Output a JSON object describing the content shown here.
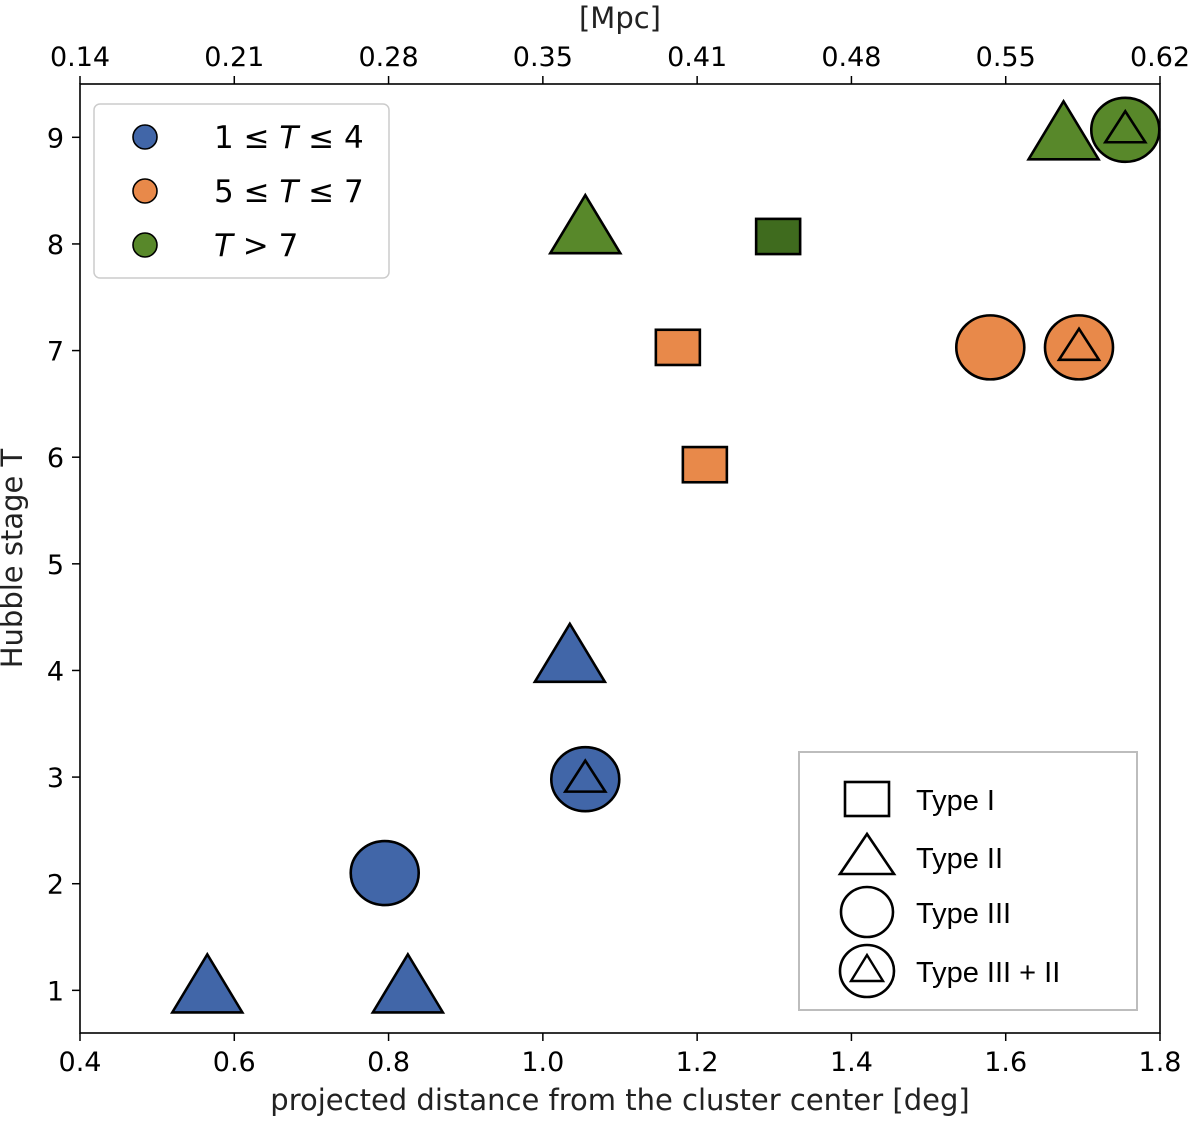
{
  "chart_data": {
    "type": "scatter",
    "xlabel": "projected distance from the cluster center [deg]",
    "ylabel": "Hubble stage T",
    "top_xlabel": "[Mpc]",
    "xlim": [
      0.4,
      1.8
    ],
    "ylim": [
      0.6,
      9.5
    ],
    "x_ticks": [
      0.4,
      0.6,
      0.8,
      1.0,
      1.2,
      1.4,
      1.6,
      1.8
    ],
    "x_tick_labels": [
      "0.4",
      "0.6",
      "0.8",
      "1.0",
      "1.2",
      "1.4",
      "1.6",
      "1.8"
    ],
    "y_ticks": [
      1,
      2,
      3,
      4,
      5,
      6,
      7,
      8,
      9
    ],
    "y_tick_labels": [
      "1",
      "2",
      "3",
      "4",
      "5",
      "6",
      "7",
      "8",
      "9"
    ],
    "top_x_ticks": [
      0.4,
      0.6,
      0.8,
      1.0,
      1.2,
      1.4,
      1.6,
      1.8
    ],
    "top_x_tick_labels": [
      "0.14",
      "0.21",
      "0.28",
      "0.35",
      "0.41",
      "0.48",
      "0.55",
      "0.62"
    ],
    "color_legend": {
      "location": "upper left",
      "entries": [
        {
          "group": "blue",
          "label_prefix": "1 ≤ ",
          "label_var": "T",
          "label_suffix": " ≤ 4",
          "color": "#4166a8"
        },
        {
          "group": "orange",
          "label_prefix": "5 ≤ ",
          "label_var": "T",
          "label_suffix": " ≤ 7",
          "color": "#e8894a"
        },
        {
          "group": "green",
          "label_prefix": "",
          "label_var": "T",
          "label_suffix": " > 7",
          "color": "#58882a"
        }
      ]
    },
    "type_legend": {
      "location": "lower right",
      "entries": [
        {
          "marker": "square",
          "label": "Type I"
        },
        {
          "marker": "triangle",
          "label": "Type II"
        },
        {
          "marker": "circle",
          "label": "Type III"
        },
        {
          "marker": "circle-triangle",
          "label": "Type III + II"
        }
      ]
    },
    "points": [
      {
        "x": 0.565,
        "y": 1.0,
        "marker": "triangle",
        "color": "#4166a8"
      },
      {
        "x": 0.825,
        "y": 1.0,
        "marker": "triangle",
        "color": "#4166a8"
      },
      {
        "x": 0.795,
        "y": 2.1,
        "marker": "circle",
        "color": "#4166a8"
      },
      {
        "x": 1.055,
        "y": 2.98,
        "marker": "circle-triangle",
        "color": "#4166a8"
      },
      {
        "x": 1.035,
        "y": 4.1,
        "marker": "triangle",
        "color": "#4166a8"
      },
      {
        "x": 1.21,
        "y": 5.93,
        "marker": "square",
        "color": "#e8894a"
      },
      {
        "x": 1.175,
        "y": 7.03,
        "marker": "square",
        "color": "#e8894a"
      },
      {
        "x": 1.58,
        "y": 7.03,
        "marker": "circle",
        "color": "#e8894a"
      },
      {
        "x": 1.695,
        "y": 7.03,
        "marker": "circle-triangle",
        "color": "#e8894a"
      },
      {
        "x": 1.055,
        "y": 8.12,
        "marker": "triangle",
        "color": "#58882a"
      },
      {
        "x": 1.305,
        "y": 8.07,
        "marker": "square",
        "color": "#3f6b1e"
      },
      {
        "x": 1.675,
        "y": 9.0,
        "marker": "triangle",
        "color": "#58882a"
      },
      {
        "x": 1.755,
        "y": 9.07,
        "marker": "circle-triangle",
        "color": "#58882a"
      }
    ]
  }
}
